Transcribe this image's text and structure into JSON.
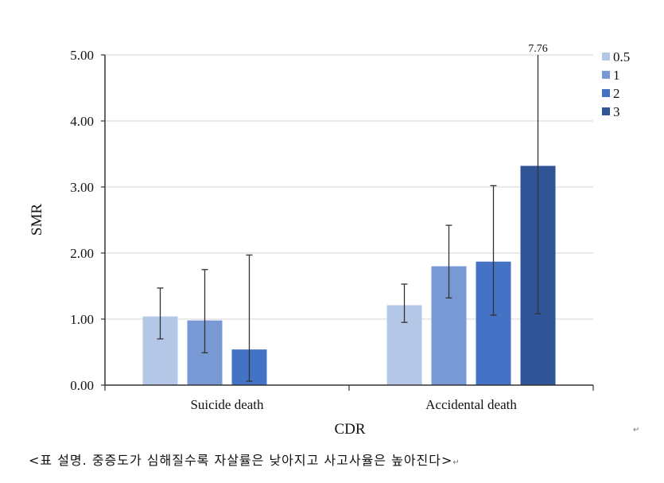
{
  "chart_data": {
    "type": "bar",
    "title": "",
    "xlabel": "CDR",
    "ylabel": "SMR",
    "ylim": [
      0,
      5
    ],
    "yticks": [
      "0.00",
      "1.00",
      "2.00",
      "3.00",
      "4.00",
      "5.00"
    ],
    "grid": true,
    "legend_position": "top-right",
    "categories": [
      "Suicide death",
      "Accidental death"
    ],
    "series": [
      {
        "name": "0.5",
        "color": "#b4c7e7",
        "values": [
          1.04,
          1.21
        ],
        "err_low": [
          0.7,
          0.95
        ],
        "err_high": [
          1.47,
          1.53
        ]
      },
      {
        "name": "1",
        "color": "#7899d4",
        "values": [
          0.98,
          1.8
        ],
        "err_low": [
          0.49,
          1.32
        ],
        "err_high": [
          1.75,
          2.42
        ]
      },
      {
        "name": "2",
        "color": "#4472c4",
        "values": [
          0.54,
          1.87
        ],
        "err_low": [
          0.06,
          1.06
        ],
        "err_high": [
          1.97,
          3.02
        ]
      },
      {
        "name": "3",
        "color": "#2f5597",
        "values": [
          null,
          3.32
        ],
        "err_low": [
          null,
          1.08
        ],
        "err_high": [
          null,
          7.76
        ]
      }
    ],
    "annotations": [
      {
        "text": "7.76",
        "series": "3",
        "category": "Accidental death"
      }
    ]
  },
  "caption": "<표 설명. 중증도가 심해질수록 자살률은 낮아지고 사고사율은 높아진다>",
  "paragraph_mark": "↵"
}
